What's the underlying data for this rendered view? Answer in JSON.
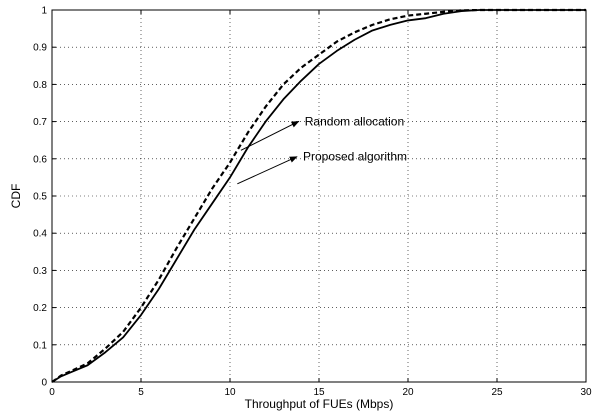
{
  "chart_data": {
    "type": "line",
    "xlabel": "Throughput of FUEs (Mbps)",
    "ylabel": "CDF",
    "xlim": [
      0,
      30
    ],
    "ylim": [
      0,
      1
    ],
    "xticks": [
      0,
      5,
      10,
      15,
      20,
      25,
      30
    ],
    "yticks": [
      0,
      0.1,
      0.2,
      0.3,
      0.4,
      0.5,
      0.6,
      0.7,
      0.8,
      0.9,
      1
    ],
    "grid": true,
    "series": [
      {
        "name": "Proposed algorithm",
        "style": "solid",
        "color": "#000000",
        "x": [
          0,
          0.5,
          1,
          2,
          3,
          4,
          5,
          6,
          7,
          8,
          9,
          10,
          11,
          12,
          13,
          14,
          15,
          16,
          17,
          18,
          19,
          20,
          21,
          22,
          23,
          24,
          25,
          26,
          27,
          28,
          29,
          30
        ],
        "y": [
          0,
          0.015,
          0.025,
          0.045,
          0.08,
          0.12,
          0.18,
          0.25,
          0.33,
          0.41,
          0.48,
          0.55,
          0.63,
          0.7,
          0.76,
          0.81,
          0.855,
          0.89,
          0.92,
          0.945,
          0.96,
          0.972,
          0.978,
          0.99,
          0.997,
          1.0,
          1.0,
          1.0,
          1.0,
          1.0,
          1.0,
          1.0
        ]
      },
      {
        "name": "Random allocation",
        "style": "dashed",
        "color": "#000000",
        "x": [
          0,
          0.5,
          1,
          2,
          3,
          4,
          5,
          6,
          7,
          8,
          9,
          10,
          11,
          12,
          13,
          14,
          15,
          16,
          17,
          18,
          19,
          20,
          21,
          22,
          23,
          24,
          25,
          26,
          27,
          28,
          29,
          30
        ],
        "y": [
          0,
          0.017,
          0.028,
          0.05,
          0.09,
          0.135,
          0.2,
          0.275,
          0.36,
          0.44,
          0.52,
          0.59,
          0.67,
          0.74,
          0.8,
          0.845,
          0.88,
          0.915,
          0.94,
          0.96,
          0.975,
          0.985,
          0.99,
          0.995,
          0.999,
          1.0,
          1.0,
          1.0,
          1.0,
          1.0,
          1.0,
          1.0
        ]
      }
    ],
    "annotations": [
      {
        "text": "Random allocation",
        "series": "Random allocation",
        "point": [
          10.5,
          0.62
        ],
        "text_at": [
          14.2,
          0.69
        ]
      },
      {
        "text": "Proposed algorithm",
        "series": "Proposed algorithm",
        "point": [
          10.3,
          0.53
        ],
        "text_at": [
          14.1,
          0.595
        ]
      }
    ]
  }
}
